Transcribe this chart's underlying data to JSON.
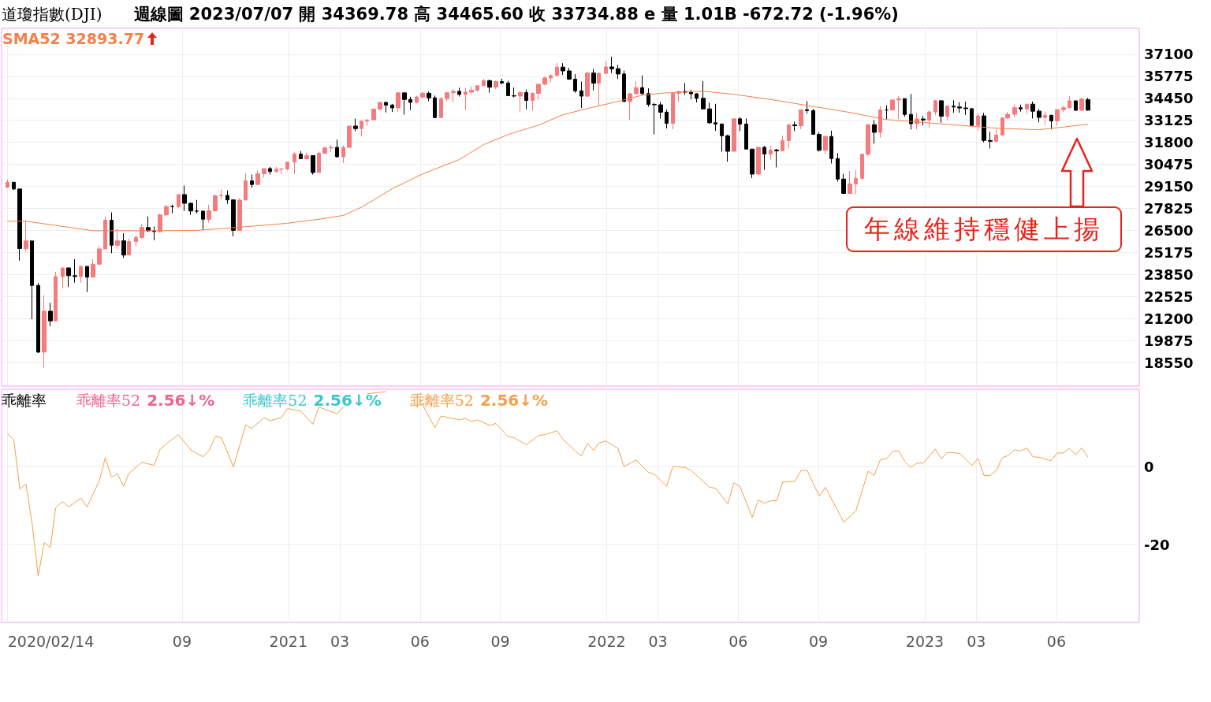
{
  "chart_data": [
    {
      "type": "candlestick",
      "title": "道瓊指數(DJI)",
      "subtitle": "週線圖  2023/07/07 開 34369.78 高 34465.60 收 33734.88 e 量 1.01B -672.72 (-1.96%)",
      "annotations": [
        "年線維持穩健上揚"
      ],
      "xlim": [
        "2020-02-07",
        "2023-09-04"
      ],
      "xticks": [
        {
          "value": "2020-02-14",
          "label": null
        },
        {
          "value": "2020-09-01",
          "label": null
        },
        {
          "value": "2021-01-01",
          "label": null
        },
        {
          "value": "2021-03-01",
          "label": null
        },
        {
          "value": "2021-06-01",
          "label": null
        },
        {
          "value": "2021-09-01",
          "label": null
        },
        {
          "value": "2022-01-01",
          "label": null
        },
        {
          "value": "2022-03-01",
          "label": null
        },
        {
          "value": "2022-06-01",
          "label": null
        },
        {
          "value": "2022-09-01",
          "label": null
        },
        {
          "value": "2023-01-01",
          "label": null
        },
        {
          "value": "2023-03-01",
          "label": null
        },
        {
          "value": "2023-06-01",
          "label": null
        }
      ],
      "tick_labels": "y",
      "ylim": [
        17130,
        38660
      ],
      "yticks": [
        18550,
        19875,
        21200,
        22525,
        23850,
        25175,
        26500,
        27825,
        29150,
        30475,
        31800,
        33125,
        34450,
        35775,
        37100
      ],
      "grid": true,
      "series": [
        {
          "colors": [
            "#f47b7e",
            "#000000",
            "#000000",
            "#f47b7e",
            "#000000",
            "#000000",
            "#f47b7e",
            "#000000",
            "#f47b7e",
            "#f47b7e",
            "#000000",
            "#000000",
            "#f47b7e",
            "#000000",
            "#f47b7e",
            "#f47b7e",
            "#f47b7e",
            "#000000",
            "#f47b7e",
            "#000000",
            "#f47b7e",
            "#f47b7e",
            "#f47b7e",
            "#000000",
            "#000000",
            "#f47b7e",
            "#f47b7e",
            "#000000",
            "#f47b7e",
            "#000000",
            "#000000",
            "#000000",
            "#000000",
            "#f47b7e",
            "#f47b7e",
            "#f47b7e",
            "#000000",
            "#000000",
            "#f47b7e",
            "#f47b7e",
            "#000000",
            "#f47b7e",
            "#f47b7e",
            "#000000",
            "#f47b7e",
            "#f47b7e",
            "#f47b7e",
            "#f47b7e",
            "#000000",
            "#f47b7e",
            "#000000",
            "#f47b7e",
            "#f47b7e",
            "#f47b7e",
            "#000000",
            "#f47b7e",
            "#f47b7e",
            "#000000",
            "#f47b7e",
            "#f47b7e",
            "#f47b7e",
            "#f47b7e",
            "#000000",
            "#000000",
            "#f47b7e",
            "#000000",
            "#000000",
            "#f47b7e",
            "#f47b7e",
            "#000000",
            "#000000",
            "#f47b7e",
            "#f47b7e",
            "#f47b7e",
            "#000000",
            "#f47b7e",
            "#f47b7e",
            "#f47b7e",
            "#f47b7e",
            "#000000",
            "#f47b7e",
            "#000000",
            "#000000",
            "#000000",
            "#f47b7e",
            "#000000",
            "#f47b7e",
            "#f47b7e",
            "#f47b7e",
            "#f47b7e",
            "#f47b7e",
            "#000000",
            "#000000",
            "#000000",
            "#000000",
            "#f47b7e",
            "#000000",
            "#f47b7e",
            "#f47b7e",
            "#000000",
            "#000000",
            "#000000",
            "#f47b7e",
            "#f47b7e",
            "#000000",
            "#000000",
            "#000000",
            "#000000",
            "#000000",
            "#f47b7e",
            "#f47b7e",
            "#000000",
            "#000000",
            "#000000",
            "#000000",
            "#000000",
            "#000000",
            "#000000",
            "#000000",
            "#f47b7e",
            "#000000",
            "#000000",
            "#000000",
            "#f47b7e",
            "#000000",
            "#f47b7e",
            "#000000",
            "#f47b7e",
            "#f47b7e",
            "#000000",
            "#f47b7e",
            "#000000",
            "#000000",
            "#000000",
            "#f47b7e",
            "#000000",
            "#000000",
            "#000000",
            "#f47b7e",
            "#f47b7e",
            "#f47b7e",
            "#f47b7e",
            "#000000",
            "#f47b7e",
            "#000000",
            "#f47b7e",
            "#f47b7e",
            "#000000",
            "#000000",
            "#f47b7e",
            "#000000",
            "#f47b7e",
            "#f47b7e",
            "#000000",
            "#f47b7e",
            "#000000",
            "#000000",
            "#000000",
            "#000000",
            "#f47b7e",
            "#000000",
            "#000000",
            "#f47b7e",
            "#f47b7e",
            "#f47b7e",
            "#f47b7e",
            "#000000",
            "#f47b7e",
            "#000000",
            "#000000",
            "#f47b7e",
            "#000000",
            "#f47b7e",
            "#f47b7e",
            "#f47b7e",
            "#000000",
            "#f47b7e",
            "#000000"
          ],
          "x": [
            "2020-02-14",
            "2020-02-21",
            "2020-02-28",
            "2020-03-06",
            "2020-03-13",
            "2020-03-20",
            "2020-03-27",
            "2020-04-03",
            "2020-04-09",
            "2020-04-17",
            "2020-04-24",
            "2020-05-01",
            "2020-05-08",
            "2020-05-15",
            "2020-05-22",
            "2020-05-29",
            "2020-06-05",
            "2020-06-12",
            "2020-06-19",
            "2020-06-26",
            "2020-07-02",
            "2020-07-10",
            "2020-07-17",
            "2020-07-24",
            "2020-07-31",
            "2020-08-07",
            "2020-08-14",
            "2020-08-21",
            "2020-08-28",
            "2020-09-04",
            "2020-09-11",
            "2020-09-18",
            "2020-09-25",
            "2020-10-02",
            "2020-10-09",
            "2020-10-16",
            "2020-10-23",
            "2020-10-30",
            "2020-11-06",
            "2020-11-13",
            "2020-11-20",
            "2020-11-27",
            "2020-12-04",
            "2020-12-11",
            "2020-12-18",
            "2020-12-24",
            "2020-12-31",
            "2021-01-08",
            "2021-01-15",
            "2021-01-22",
            "2021-01-29",
            "2021-02-05",
            "2021-02-12",
            "2021-02-19",
            "2021-02-26",
            "2021-03-05",
            "2021-03-12",
            "2021-03-19",
            "2021-03-26",
            "2021-04-01",
            "2021-04-09",
            "2021-04-16",
            "2021-04-23",
            "2021-04-30",
            "2021-05-07",
            "2021-05-14",
            "2021-05-21",
            "2021-05-28",
            "2021-06-04",
            "2021-06-11",
            "2021-06-18",
            "2021-06-25",
            "2021-07-02",
            "2021-07-09",
            "2021-07-16",
            "2021-07-23",
            "2021-07-30",
            "2021-08-06",
            "2021-08-13",
            "2021-08-20",
            "2021-08-27",
            "2021-09-03",
            "2021-09-10",
            "2021-09-17",
            "2021-09-24",
            "2021-10-01",
            "2021-10-08",
            "2021-10-15",
            "2021-10-22",
            "2021-10-29",
            "2021-11-05",
            "2021-11-12",
            "2021-11-19",
            "2021-11-26",
            "2021-12-03",
            "2021-12-10",
            "2021-12-17",
            "2021-12-23",
            "2021-12-31",
            "2022-01-07",
            "2022-01-14",
            "2022-01-21",
            "2022-01-28",
            "2022-02-04",
            "2022-02-11",
            "2022-02-18",
            "2022-02-25",
            "2022-03-04",
            "2022-03-11",
            "2022-03-18",
            "2022-03-25",
            "2022-04-01",
            "2022-04-08",
            "2022-04-14",
            "2022-04-22",
            "2022-04-29",
            "2022-05-06",
            "2022-05-13",
            "2022-05-20",
            "2022-05-27",
            "2022-06-03",
            "2022-06-10",
            "2022-06-17",
            "2022-06-24",
            "2022-07-01",
            "2022-07-08",
            "2022-07-15",
            "2022-07-22",
            "2022-07-29",
            "2022-08-05",
            "2022-08-12",
            "2022-08-19",
            "2022-08-26",
            "2022-09-02",
            "2022-09-09",
            "2022-09-16",
            "2022-09-23",
            "2022-09-30",
            "2022-10-07",
            "2022-10-14",
            "2022-10-21",
            "2022-10-28",
            "2022-11-04",
            "2022-11-11",
            "2022-11-18",
            "2022-11-25",
            "2022-12-02",
            "2022-12-09",
            "2022-12-16",
            "2022-12-23",
            "2022-12-30",
            "2023-01-06",
            "2023-01-13",
            "2023-01-20",
            "2023-01-27",
            "2023-02-03",
            "2023-02-10",
            "2023-02-17",
            "2023-02-24",
            "2023-03-03",
            "2023-03-10",
            "2023-03-17",
            "2023-03-24",
            "2023-03-31",
            "2023-04-06",
            "2023-04-14",
            "2023-04-21",
            "2023-04-28",
            "2023-05-05",
            "2023-05-12",
            "2023-05-19",
            "2023-05-26",
            "2023-06-02",
            "2023-06-09",
            "2023-06-16",
            "2023-06-23",
            "2023-06-30",
            "2023-07-07"
          ],
          "ohlc": [
            [
              29102,
              29568,
              29056,
              29398
            ],
            [
              29398,
              29409,
              28942,
              28992
            ],
            [
              28992,
              28992,
              24681,
              25409
            ],
            [
              25409,
              27102,
              25227,
              25864
            ],
            [
              25864,
              25864,
              21154,
              23186
            ],
            [
              23186,
              23329,
              19121,
              19174
            ],
            [
              19174,
              22596,
              18213,
              21637
            ],
            [
              21637,
              22137,
              20735,
              21053
            ],
            [
              21053,
              24008,
              21003,
              23719
            ],
            [
              23719,
              24264,
              23006,
              24242
            ],
            [
              24242,
              24261,
              23092,
              23775
            ],
            [
              23775,
              24765,
              23361,
              23724
            ],
            [
              23724,
              24365,
              23337,
              24331
            ],
            [
              24331,
              24346,
              22789,
              23685
            ],
            [
              23685,
              24765,
              23685,
              24465
            ],
            [
              24465,
              25584,
              24425,
              25383
            ],
            [
              25383,
              27338,
              25383,
              27111
            ],
            [
              27111,
              27580,
              25128,
              25606
            ],
            [
              25606,
              26610,
              25392,
              25871
            ],
            [
              25871,
              26328,
              24843,
              25016
            ],
            [
              25016,
              26019,
              25016,
              25827
            ],
            [
              25827,
              26230,
              25523,
              26075
            ],
            [
              26075,
              26888,
              25985,
              26672
            ],
            [
              26672,
              27335,
              26420,
              26470
            ],
            [
              26470,
              26734,
              25902,
              26428
            ],
            [
              26428,
              27504,
              26374,
              27433
            ],
            [
              27433,
              28047,
              27379,
              27931
            ],
            [
              27931,
              28054,
              27526,
              27930
            ],
            [
              27930,
              28678,
              27859,
              28654
            ],
            [
              28654,
              29199,
              27664,
              28133
            ],
            [
              28133,
              28176,
              27432,
              27666
            ],
            [
              27666,
              28338,
              27515,
              27657
            ],
            [
              27657,
              27679,
              26538,
              27174
            ],
            [
              27174,
              28041,
              26971,
              27683
            ],
            [
              27683,
              28660,
              27605,
              28587
            ],
            [
              28587,
              28958,
              28389,
              28606
            ],
            [
              28606,
              28902,
              28097,
              28336
            ],
            [
              28336,
              28336,
              26143,
              26502
            ],
            [
              26502,
              28434,
              26502,
              28323
            ],
            [
              28323,
              29933,
              28323,
              29480
            ],
            [
              29480,
              29862,
              29066,
              29263
            ],
            [
              29263,
              30116,
              29263,
              29910
            ],
            [
              29910,
              30218,
              29679,
              30218
            ],
            [
              30218,
              30319,
              29862,
              30046
            ],
            [
              30046,
              30324,
              29958,
              30179
            ],
            [
              30179,
              30240,
              29890,
              30200
            ],
            [
              30200,
              30637,
              30095,
              30606
            ],
            [
              30606,
              31193,
              29881,
              31098
            ],
            [
              31098,
              31272,
              30790,
              30814
            ],
            [
              30814,
              31188,
              30775,
              30997
            ],
            [
              30997,
              31011,
              29856,
              29983
            ],
            [
              29983,
              31235,
              29983,
              31148
            ],
            [
              31148,
              31529,
              31148,
              31458
            ],
            [
              31458,
              31644,
              31218,
              31494
            ],
            [
              31494,
              31962,
              30878,
              30932
            ],
            [
              30932,
              31616,
              30547,
              31496
            ],
            [
              31496,
              32793,
              31481,
              32779
            ],
            [
              32779,
              33227,
              32467,
              32628
            ],
            [
              32628,
              33088,
              32150,
              33073
            ],
            [
              33073,
              33180,
              32786,
              33153
            ],
            [
              33153,
              33827,
              33153,
              33801
            ],
            [
              33801,
              34256,
              33726,
              34200
            ],
            [
              34200,
              34256,
              33596,
              34043
            ],
            [
              34043,
              34118,
              33625,
              33875
            ],
            [
              33875,
              34811,
              33642,
              34778
            ],
            [
              34778,
              34779,
              33473,
              34382
            ],
            [
              34382,
              34542,
              33740,
              34208
            ],
            [
              34208,
              34601,
              34133,
              34529
            ],
            [
              34529,
              34849,
              34445,
              34756
            ],
            [
              34756,
              34849,
              34280,
              34480
            ],
            [
              34480,
              34621,
              33272,
              33290
            ],
            [
              33290,
              34533,
              33290,
              34433
            ],
            [
              34433,
              34808,
              34297,
              34786
            ],
            [
              34786,
              35006,
              34205,
              34870
            ],
            [
              34870,
              35091,
              34555,
              34687
            ],
            [
              34687,
              35062,
              33741,
              34823
            ],
            [
              34823,
              35171,
              34696,
              34935
            ],
            [
              34935,
              35238,
              34836,
              35209
            ],
            [
              35209,
              35632,
              35196,
              35515
            ],
            [
              35515,
              35567,
              34791,
              35120
            ],
            [
              35120,
              35511,
              35005,
              35455
            ],
            [
              35455,
              35631,
              35307,
              35369
            ],
            [
              35369,
              35510,
              34607,
              34608
            ],
            [
              34608,
              35098,
              34504,
              34584
            ],
            [
              34584,
              34860,
              33613,
              34798
            ],
            [
              34798,
              34981,
              33785,
              34326
            ],
            [
              34326,
              34808,
              33689,
              34746
            ],
            [
              34746,
              35348,
              34379,
              35295
            ],
            [
              35295,
              35765,
              35232,
              35677
            ],
            [
              35677,
              35892,
              35415,
              35820
            ],
            [
              35820,
              36566,
              35816,
              36328
            ],
            [
              36328,
              36565,
              35855,
              36100
            ],
            [
              36100,
              36280,
              35560,
              35602
            ],
            [
              35602,
              35908,
              34784,
              34899
            ],
            [
              34899,
              35457,
              33866,
              34580
            ],
            [
              34580,
              36026,
              34510,
              35971
            ],
            [
              35971,
              36227,
              34924,
              35365
            ],
            [
              35365,
              36024,
              34008,
              35951
            ],
            [
              35951,
              36679,
              35915,
              36338
            ],
            [
              36338,
              36952,
              35967,
              36231
            ],
            [
              36231,
              36463,
              35612,
              35912
            ],
            [
              35912,
              36125,
              34214,
              34265
            ],
            [
              34265,
              34797,
              33150,
              34725
            ],
            [
              34725,
              35489,
              34722,
              35089
            ],
            [
              35089,
              35824,
              34635,
              34738
            ],
            [
              34738,
              35047,
              33945,
              34079
            ],
            [
              34079,
              34177,
              32273,
              34059
            ],
            [
              34059,
              34232,
              33234,
              33615
            ],
            [
              33615,
              33780,
              32633,
              32944
            ],
            [
              32944,
              34791,
              32594,
              34754
            ],
            [
              34754,
              34917,
              34228,
              34862
            ],
            [
              34862,
              35372,
              34656,
              34818
            ],
            [
              34818,
              34968,
              34386,
              34721
            ],
            [
              34721,
              34768,
              34197,
              34451
            ],
            [
              34451,
              35493,
              33800,
              33811
            ],
            [
              33811,
              34190,
              32910,
              32977
            ],
            [
              32977,
              34117,
              32484,
              32899
            ],
            [
              32899,
              32944,
              31229,
              32197
            ],
            [
              32197,
              32264,
              30635,
              31262
            ],
            [
              31262,
              33248,
              31262,
              33213
            ],
            [
              33213,
              33305,
              32466,
              32900
            ],
            [
              32900,
              33239,
              31377,
              31393
            ],
            [
              31393,
              31394,
              29653,
              29889
            ],
            [
              29889,
              31533,
              29889,
              31501
            ],
            [
              31501,
              31580,
              30143,
              31097
            ],
            [
              31097,
              31596,
              30753,
              31338
            ],
            [
              31338,
              31408,
              30296,
              31288
            ],
            [
              31288,
              32201,
              31288,
              31899
            ],
            [
              31899,
              32910,
              31426,
              32845
            ],
            [
              32845,
              33045,
              32467,
              32803
            ],
            [
              32803,
              33779,
              32596,
              33761
            ],
            [
              33761,
              34281,
              33542,
              33707
            ],
            [
              33707,
              33815,
              32281,
              32283
            ],
            [
              32283,
              32408,
              31250,
              31318
            ],
            [
              31318,
              32200,
              31104,
              32152
            ],
            [
              32152,
              32504,
              30529,
              30822
            ],
            [
              30822,
              31155,
              29439,
              29590
            ],
            [
              29590,
              29902,
              28715,
              28725
            ],
            [
              28725,
              30089,
              28725,
              29297
            ],
            [
              29297,
              30130,
              28660,
              29635
            ],
            [
              29635,
              31119,
              29551,
              31083
            ],
            [
              31083,
              32889,
              30986,
              32862
            ],
            [
              32862,
              33137,
              31727,
              32403
            ],
            [
              32403,
              33987,
              32079,
              33748
            ],
            [
              33748,
              34022,
              33189,
              33746
            ],
            [
              33746,
              34362,
              33746,
              34347
            ],
            [
              34347,
              34595,
              33181,
              34430
            ],
            [
              34430,
              34430,
              33342,
              33477
            ],
            [
              33477,
              34712,
              32573,
              32920
            ],
            [
              32920,
              33572,
              32581,
              33204
            ],
            [
              33204,
              33388,
              32813,
              33147
            ],
            [
              33147,
              33716,
              32650,
              33631
            ],
            [
              33631,
              34342,
              33436,
              34303
            ],
            [
              34303,
              34342,
              32983,
              33375
            ],
            [
              33375,
              34015,
              33119,
              33978
            ],
            [
              33978,
              34335,
              33583,
              33926
            ],
            [
              33926,
              34220,
              33581,
              33869
            ],
            [
              33869,
              34244,
              33447,
              33827
            ],
            [
              33827,
              33863,
              32788,
              32817
            ],
            [
              32817,
              33572,
              32500,
              33391
            ],
            [
              33391,
              33572,
              31805,
              31910
            ],
            [
              31910,
              32441,
              31429,
              31862
            ],
            [
              31862,
              32600,
              31805,
              32238
            ],
            [
              32238,
              33274,
              32199,
              33274
            ],
            [
              33274,
              33634,
              33195,
              33485
            ],
            [
              33485,
              34082,
              33292,
              33886
            ],
            [
              33886,
              34071,
              33645,
              33809
            ],
            [
              33809,
              34104,
              33521,
              34098
            ],
            [
              34098,
              34257,
              33235,
              33674
            ],
            [
              33674,
              33802,
              33010,
              33300
            ],
            [
              33300,
              33653,
              32846,
              33427
            ],
            [
              33427,
              33462,
              32586,
              33093
            ],
            [
              33093,
              33800,
              32797,
              33763
            ],
            [
              33763,
              34025,
              33601,
              33877
            ],
            [
              33877,
              34588,
              33850,
              34299
            ],
            [
              34299,
              34304,
              33696,
              33727
            ],
            [
              33727,
              34481,
              33693,
              34408
            ],
            [
              34369.78,
              34465.6,
              33700,
              33734.88
            ]
          ]
        },
        {
          "type": "line",
          "name": "SMA52 32893.77",
          "color": "#f4804a",
          "x": [
            "2020-02-14",
            "2020-03-06",
            "2020-04-09",
            "2020-05-22",
            "2020-08-07",
            "2020-09-18",
            "2020-11-06",
            "2020-12-31",
            "2021-02-05",
            "2021-03-05",
            "2021-03-26",
            "2021-04-30",
            "2021-06-04",
            "2021-07-16",
            "2021-08-13",
            "2021-09-10",
            "2021-10-15",
            "2021-11-12",
            "2021-12-10",
            "2022-01-14",
            "2022-02-11",
            "2022-03-11",
            "2022-04-22",
            "2022-05-27",
            "2022-07-08",
            "2022-08-19",
            "2022-10-07",
            "2022-11-18",
            "2023-01-13",
            "2023-03-24",
            "2023-05-12",
            "2023-06-09",
            "2023-07-07"
          ],
          "values": [
            27050,
            27050,
            26800,
            26480,
            26480,
            26500,
            26690,
            26930,
            27170,
            27400,
            27900,
            29000,
            29900,
            30760,
            31660,
            32270,
            32840,
            33460,
            33835,
            34260,
            34640,
            34780,
            34880,
            34690,
            34380,
            34020,
            33600,
            33170,
            32940,
            32650,
            32560,
            32720,
            32893.77
          ]
        }
      ]
    },
    {
      "type": "line",
      "title": "乖離率",
      "annotations": [
        "2.56↓%",
        "2.56↓%",
        "2.56↓%"
      ],
      "xlim": [
        "2020-02-07",
        "2023-09-04"
      ],
      "xticks": [
        {
          "value": "2020-02-14",
          "label": "2020/02/14"
        },
        {
          "value": "2020-09-01",
          "label": "09"
        },
        {
          "value": "2021-01-01",
          "label": "2021"
        },
        {
          "value": "2021-03-01",
          "label": "03"
        },
        {
          "value": "2021-06-01",
          "label": "06"
        },
        {
          "value": "2021-09-01",
          "label": "09"
        },
        {
          "value": "2022-01-01",
          "label": "2022"
        },
        {
          "value": "2022-03-01",
          "label": "03"
        },
        {
          "value": "2022-06-01",
          "label": "06"
        },
        {
          "value": "2022-09-01",
          "label": "09"
        },
        {
          "value": "2023-01-01",
          "label": "2023"
        },
        {
          "value": "2023-03-01",
          "label": "03"
        },
        {
          "value": "2023-06-01",
          "label": "06"
        }
      ],
      "ylim": [
        -40,
        20
      ],
      "yticks": [
        -20,
        0
      ],
      "grid": true,
      "series": [
        {
          "name": "乖離率52",
          "color": "#f0648c"
        },
        {
          "name": "乖離率52",
          "color": "#3cc8c8"
        },
        {
          "name": "乖離率52",
          "color": "#f5a04a",
          "x": [
            "2020-02-14",
            "2020-02-21",
            "2020-02-28",
            "2020-03-06",
            "2020-03-13",
            "2020-03-20",
            "2020-03-27",
            "2020-04-03",
            "2020-04-09",
            "2020-04-17",
            "2020-04-24",
            "2020-05-08",
            "2020-05-15",
            "2020-05-29",
            "2020-06-05",
            "2020-06-12",
            "2020-06-19",
            "2020-06-26",
            "2020-07-02",
            "2020-07-17",
            "2020-07-31",
            "2020-08-07",
            "2020-08-14",
            "2020-08-28",
            "2020-09-11",
            "2020-09-25",
            "2020-10-02",
            "2020-10-09",
            "2020-10-16",
            "2020-10-30",
            "2020-11-13",
            "2020-11-20",
            "2020-12-04",
            "2020-12-11",
            "2020-12-24",
            "2020-12-31",
            "2021-01-15",
            "2021-01-29",
            "2021-02-05",
            "2021-02-26",
            "2021-03-05",
            "2021-03-19",
            "2021-04-01",
            "2021-04-23",
            "2021-05-07",
            "2021-05-21",
            "2021-06-04",
            "2021-06-18",
            "2021-06-25",
            "2021-07-16",
            "2021-07-23",
            "2021-07-30",
            "2021-08-06",
            "2021-08-20",
            "2021-08-27",
            "2021-09-10",
            "2021-09-17",
            "2021-10-01",
            "2021-10-15",
            "2021-10-22",
            "2021-11-05",
            "2021-11-12",
            "2021-11-26",
            "2021-12-03",
            "2021-12-10",
            "2021-12-17",
            "2021-12-23",
            "2021-12-31",
            "2022-01-14",
            "2022-01-21",
            "2022-02-04",
            "2022-02-18",
            "2022-02-25",
            "2022-03-11",
            "2022-03-18",
            "2022-04-01",
            "2022-04-08",
            "2022-04-29",
            "2022-05-06",
            "2022-05-20",
            "2022-05-27",
            "2022-06-03",
            "2022-06-17",
            "2022-06-24",
            "2022-07-01",
            "2022-07-08",
            "2022-07-15",
            "2022-07-22",
            "2022-08-05",
            "2022-08-12",
            "2022-08-19",
            "2022-09-02",
            "2022-09-09",
            "2022-09-30",
            "2022-10-14",
            "2022-10-28",
            "2022-11-04",
            "2022-11-11",
            "2022-11-18",
            "2022-11-25",
            "2022-12-02",
            "2022-12-09",
            "2022-12-16",
            "2022-12-23",
            "2022-12-30",
            "2023-01-13",
            "2023-01-20",
            "2023-01-27",
            "2023-02-10",
            "2023-02-24",
            "2023-03-03",
            "2023-03-10",
            "2023-03-17",
            "2023-03-24",
            "2023-03-31",
            "2023-04-06",
            "2023-04-14",
            "2023-04-21",
            "2023-04-28",
            "2023-05-05",
            "2023-05-12",
            "2023-05-26",
            "2023-06-02",
            "2023-06-09",
            "2023-06-16",
            "2023-06-23",
            "2023-06-30",
            "2023-07-07"
          ],
          "values": [
            8.5,
            7,
            -5.7,
            -4.4,
            -14.5,
            -28,
            -19.4,
            -20.8,
            -10.5,
            -8.9,
            -10.3,
            -8,
            -10.3,
            -3.6,
            2.4,
            -2.6,
            -1.8,
            -5,
            -1.7,
            1.2,
            0.4,
            4.6,
            6,
            8.3,
            4.4,
            2.6,
            4.2,
            7.8,
            7.6,
            0,
            10.8,
            9.9,
            12.7,
            11.9,
            12.7,
            15,
            14.4,
            11,
            15.4,
            13.7,
            15.4,
            null,
            18.8,
            19.4,
            null,
            15.8,
            16,
            10.1,
            13.1,
            12.1,
            12.5,
            11.7,
            12.1,
            10.7,
            11.2,
            7.8,
            7.5,
            5.7,
            8.1,
            8.3,
            9.3,
            7.1,
            4.1,
            2.8,
            6.1,
            4.3,
            6.1,
            6.7,
            4.8,
            0.1,
            1.8,
            -1.4,
            -1.9,
            -5,
            0.1,
            -0.1,
            -0.9,
            -5.2,
            -5.5,
            -9.5,
            -4.1,
            -5,
            -13,
            -8.5,
            -9.3,
            -8.7,
            -8.7,
            -3.9,
            -3.7,
            -0.9,
            -0.9,
            -7.5,
            -5.2,
            -14.2,
            -11.3,
            -1.1,
            -2.2,
            1.9,
            2.1,
            3.9,
            4.2,
            1.4,
            -0.1,
            1,
            1,
            4.6,
            2.1,
            3.8,
            3.5,
            0.4,
            2.2,
            -2.2,
            -2.2,
            -0.9,
            2.4,
            2.9,
            4.4,
            4.1,
            4.9,
            2.6,
            2.5,
            1.6,
            3.6,
            3.6,
            4.8,
            3.1,
            4.9,
            2.56
          ]
        }
      ]
    }
  ]
}
